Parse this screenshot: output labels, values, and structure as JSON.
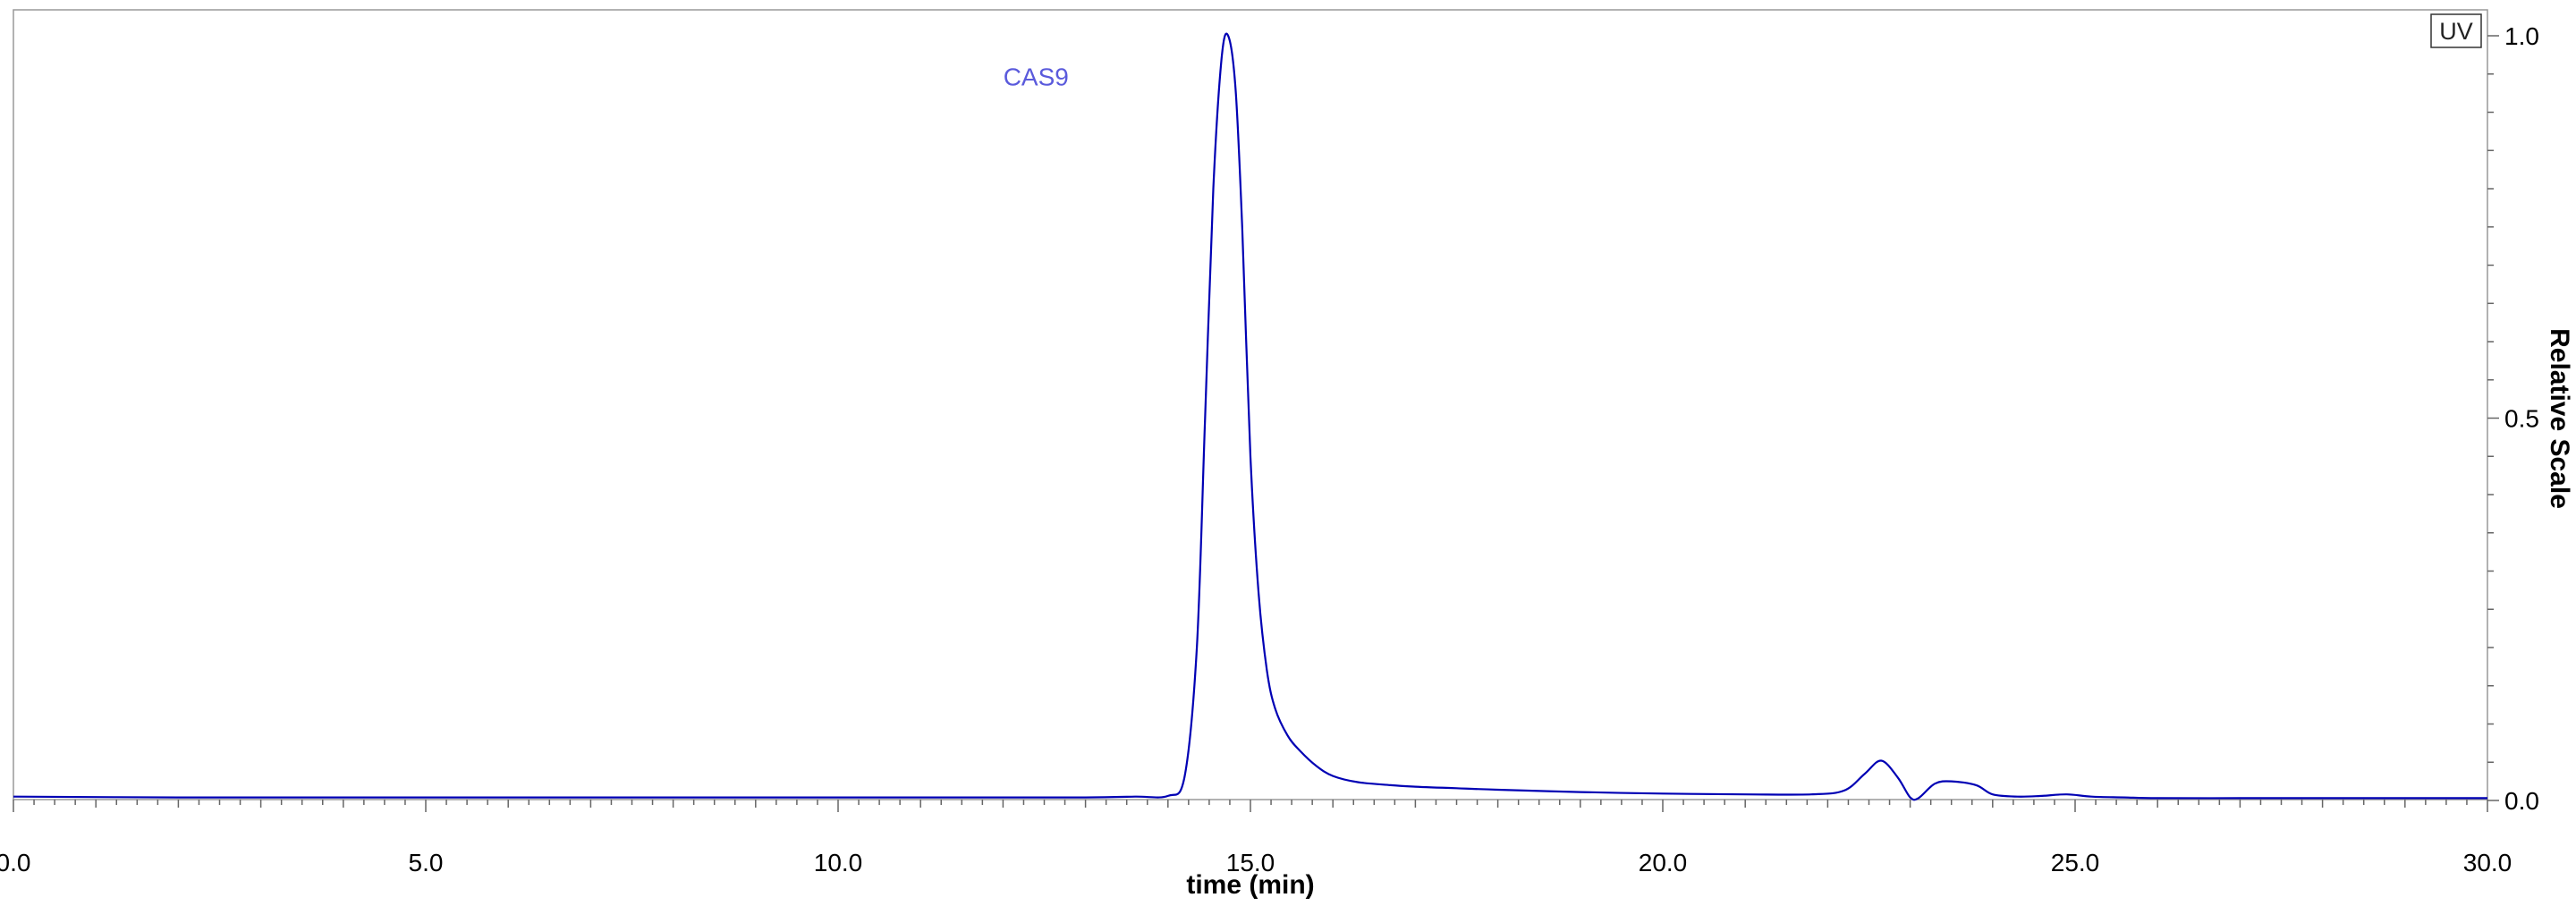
{
  "chart_data": {
    "type": "line",
    "xlabel": "time (min)",
    "ylabel": "Relative Scale",
    "xlim": [
      0,
      30
    ],
    "ylim": [
      0,
      1
    ],
    "x_ticks": [
      0,
      5,
      10,
      15,
      20,
      25,
      30
    ],
    "x_tick_labels": [
      "0.0",
      "5.0",
      "10.0",
      "15.0",
      "20.0",
      "25.0",
      "30.0"
    ],
    "y_ticks": [
      0,
      0.5,
      1
    ],
    "y_tick_labels": [
      "0.0",
      "0.5",
      "1.0"
    ],
    "y_axis_side": "right",
    "grid": false,
    "legend": {
      "placement": "top-right",
      "entries": [
        "UV"
      ]
    },
    "annotations": [
      {
        "text": "CAS9",
        "x": 12.4,
        "y": 0.935
      }
    ],
    "colors": {
      "trace": "#0000b4",
      "annotation": "#5a5adc",
      "axis": "#666666"
    },
    "series": [
      {
        "name": "UV",
        "x": [
          0.0,
          2.0,
          4.0,
          6.0,
          8.0,
          10.0,
          12.0,
          13.0,
          13.6,
          14.0,
          14.2,
          14.35,
          14.45,
          14.55,
          14.65,
          14.73,
          14.82,
          14.9,
          15.0,
          15.1,
          15.2,
          15.3,
          15.45,
          15.6,
          15.8,
          16.0,
          16.3,
          16.7,
          17.0,
          17.5,
          18.0,
          19.0,
          20.0,
          21.0,
          21.8,
          22.2,
          22.45,
          22.65,
          22.85,
          23.0,
          23.1,
          23.3,
          23.5,
          23.8,
          24.0,
          24.3,
          24.6,
          24.9,
          25.2,
          25.6,
          26.0,
          27.0,
          28.0,
          29.0,
          30.0
        ],
        "values": [
          0.005,
          0.004,
          0.004,
          0.004,
          0.004,
          0.004,
          0.004,
          0.004,
          0.005,
          0.006,
          0.03,
          0.2,
          0.5,
          0.8,
          0.97,
          1.0,
          0.93,
          0.75,
          0.45,
          0.27,
          0.17,
          0.12,
          0.085,
          0.065,
          0.045,
          0.032,
          0.024,
          0.02,
          0.018,
          0.016,
          0.014,
          0.011,
          0.009,
          0.008,
          0.008,
          0.013,
          0.035,
          0.052,
          0.03,
          0.004,
          0.003,
          0.022,
          0.025,
          0.02,
          0.008,
          0.005,
          0.006,
          0.008,
          0.005,
          0.004,
          0.003,
          0.003,
          0.003,
          0.003,
          0.003
        ]
      }
    ]
  }
}
